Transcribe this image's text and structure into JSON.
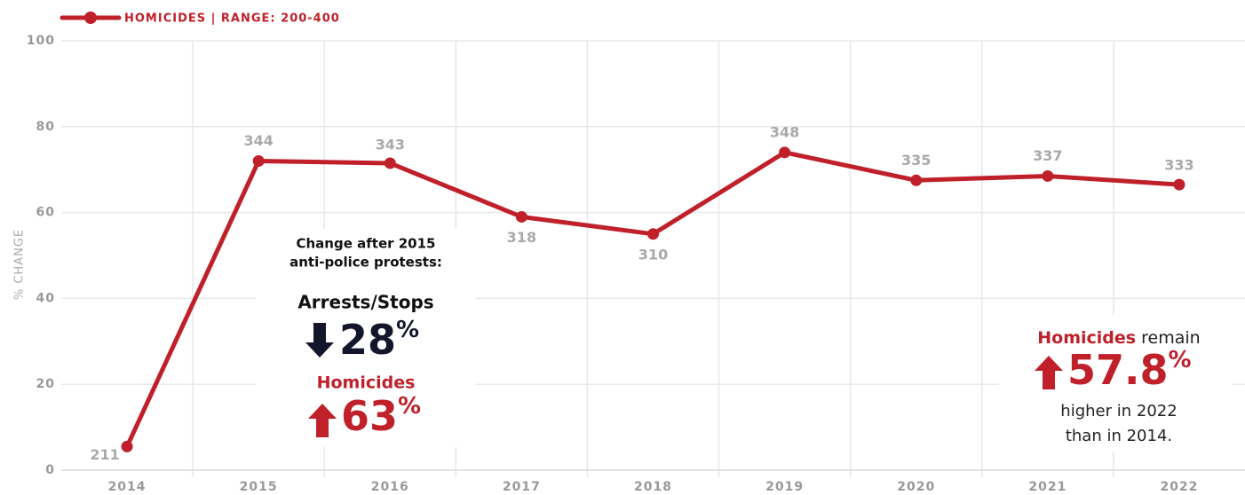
{
  "chart_data": {
    "type": "line",
    "legend_label": "HOMICIDES | RANGE: 200-400",
    "y_axis_label": "% CHANGE",
    "categories": [
      "2014",
      "2015",
      "2016",
      "2017",
      "2018",
      "2019",
      "2020",
      "2021",
      "2022"
    ],
    "series": [
      {
        "name": "HOMICIDES",
        "color": "#c0202a",
        "values": [
          5.5,
          72,
          71.5,
          59,
          55,
          74,
          67.5,
          68.5,
          66.5
        ],
        "value_labels": [
          "211",
          "344",
          "343",
          "318",
          "310",
          "348",
          "335",
          "337",
          "333"
        ]
      }
    ],
    "ylim": [
      0,
      100
    ],
    "yticks": [
      0,
      20,
      40,
      60,
      80,
      100
    ],
    "grid": true,
    "annotations": {
      "protest": {
        "title_line1": "Change after 2015",
        "title_line2": "anti-police protests:",
        "arrests_label": "Arrests/Stops",
        "arrests_value": "28",
        "arrests_unit": "%",
        "homicides_label": "Homicides",
        "homicides_value": "63",
        "homicides_unit": "%"
      },
      "summary": {
        "highlight": "Homicides",
        "remain": " remain",
        "value": "57.8",
        "unit": "%",
        "line2": "higher in 2022",
        "line3": "than in 2014."
      }
    }
  }
}
